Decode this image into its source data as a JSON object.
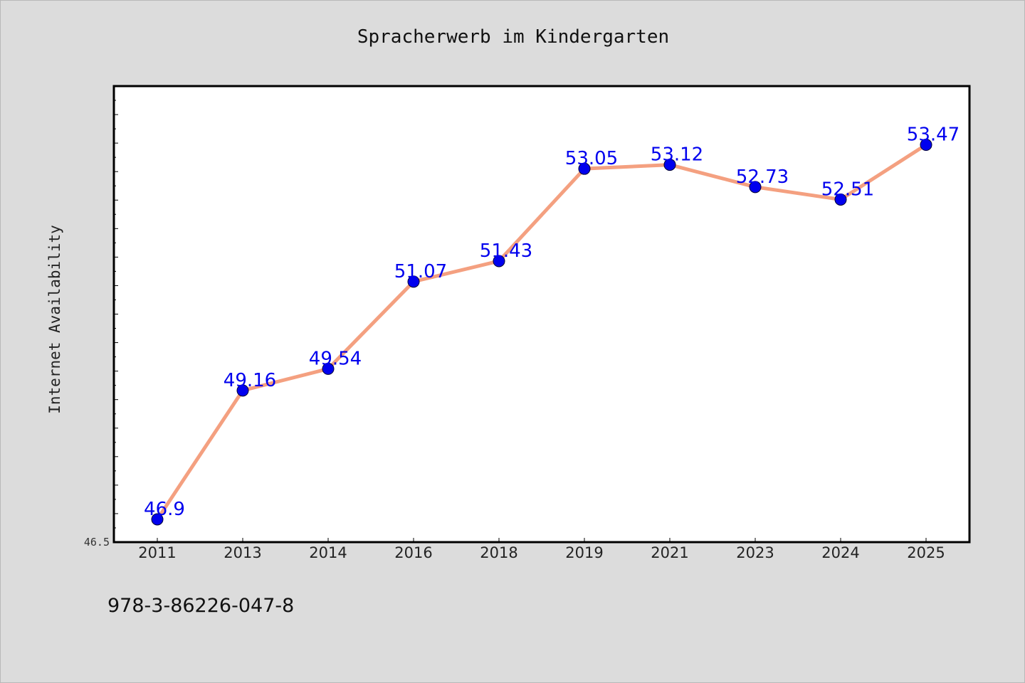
{
  "chart_data": {
    "type": "line",
    "title": "Spracherwerb im Kindergarten",
    "xlabel": "",
    "ylabel": "Internet Availability",
    "categories": [
      "2011",
      "2013",
      "2014",
      "2016",
      "2018",
      "2019",
      "2021",
      "2023",
      "2024",
      "2025"
    ],
    "series": [
      {
        "values": [
          46.9,
          49.16,
          49.54,
          51.07,
          51.43,
          53.05,
          53.12,
          52.73,
          52.51,
          53.47
        ],
        "data_labels": [
          "46.9",
          "49.16",
          "49.54",
          "51.07",
          "51.43",
          "53.05",
          "53.12",
          "52.73",
          "52.51",
          "53.47"
        ],
        "line_color": "#f4a080",
        "marker_color": "#0000ee",
        "label_color": "#0000ee"
      }
    ],
    "ylim": [
      46.5,
      54.5
    ],
    "y_tick_labels": [
      "46.5"
    ],
    "grid": false,
    "legend": "none"
  },
  "footer": {
    "code": "978-3-86226-047-8"
  }
}
